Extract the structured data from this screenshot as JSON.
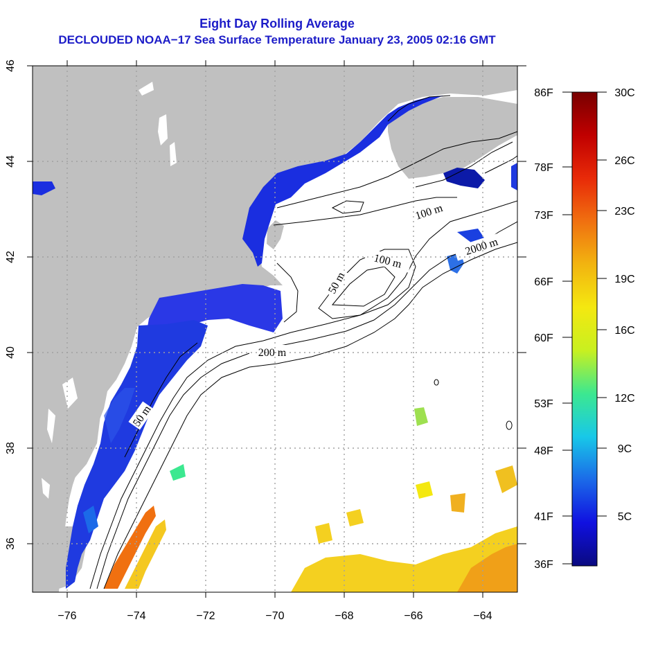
{
  "title": {
    "line1": "Eight Day Rolling Average",
    "line2": "DECLOUDED NOAA−17 Sea Surface Temperature January 23, 2005 02:16 GMT"
  },
  "map": {
    "lon_range": [
      -77,
      -63
    ],
    "lat_range": [
      35,
      46
    ],
    "lon_ticks": [
      "−76",
      "−74",
      "−72",
      "−70",
      "−68",
      "−66",
      "−64"
    ],
    "lat_ticks": [
      "36",
      "38",
      "40",
      "42",
      "44",
      "46"
    ],
    "land_color": "#c0c0c0",
    "grid": "dotted"
  },
  "contours": {
    "labels": [
      "100 m",
      "2000 m",
      "100 m",
      "50 m",
      "200 m",
      "50 m"
    ]
  },
  "colorbar": {
    "fahrenheit": [
      "86F",
      "78F",
      "73F",
      "66F",
      "60F",
      "53F",
      "48F",
      "41F",
      "36F"
    ],
    "celsius": [
      "30C",
      "26C",
      "23C",
      "19C",
      "16C",
      "12C",
      "9C",
      "5C"
    ],
    "stops": [
      "#0a0a80",
      "#1010e0",
      "#1b6ae8",
      "#18c8e8",
      "#3ce890",
      "#c8f020",
      "#f4e810",
      "#f2b410",
      "#f07010",
      "#e82a08",
      "#c00000",
      "#780000"
    ]
  }
}
